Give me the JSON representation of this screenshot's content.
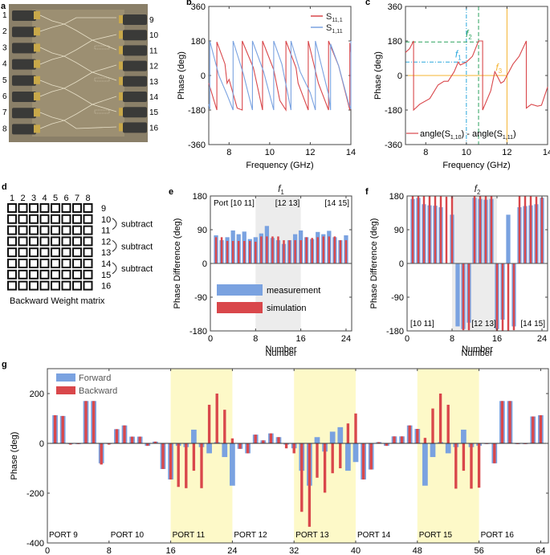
{
  "panels": {
    "a": {
      "letter": "a",
      "left_ports": [
        "1",
        "2",
        "3",
        "4",
        "5",
        "6",
        "7",
        "8"
      ],
      "right_ports": [
        "9",
        "10",
        "11",
        "12",
        "13",
        "14",
        "15",
        "16"
      ]
    },
    "d": {
      "letter": "d",
      "col_labels": [
        "1",
        "2",
        "3",
        "4",
        "5",
        "6",
        "7",
        "8"
      ],
      "row_labels": [
        "9",
        "10",
        "11",
        "12",
        "13",
        "14",
        "15",
        "16"
      ],
      "subtract_label": "subtract",
      "caption": "Backward Weight matrix"
    }
  },
  "chart_data": [
    {
      "id": "b",
      "letter": "b",
      "type": "line",
      "title": "",
      "xlabel": "Frequency (GHz)",
      "ylabel": "Phase (deg)",
      "xlim": [
        7,
        14
      ],
      "ylim": [
        -360,
        360
      ],
      "xticks": [
        "8",
        "10",
        "12",
        "14"
      ],
      "xtick_values": [
        8,
        10,
        12,
        14
      ],
      "yticks": [
        "-360",
        "-180",
        "0",
        "180",
        "360"
      ],
      "ytick_values": [
        -360,
        -180,
        0,
        180,
        360
      ],
      "legend_position": "top-right",
      "series": [
        {
          "name": "S11,1",
          "label_main": "S",
          "label_sub": "11,1",
          "color": "#d9474b",
          "x": [
            7.0,
            7.4,
            7.4,
            7.8,
            7.9,
            8.0,
            8.4,
            8.65,
            8.65,
            9.2,
            9.65,
            9.65,
            10.2,
            10.5,
            10.8,
            10.8,
            11.3,
            11.4,
            11.9,
            11.9,
            12.4,
            12.9,
            12.9,
            13.4,
            13.95,
            13.95,
            14.0
          ],
          "y": [
            -40,
            -180,
            175,
            60,
            -40,
            -20,
            -170,
            -180,
            180,
            40,
            -180,
            180,
            30,
            -130,
            -180,
            180,
            40,
            -40,
            -180,
            180,
            -40,
            -180,
            180,
            50,
            -180,
            170,
            120
          ]
        },
        {
          "name": "S1,11",
          "label_main": "S",
          "label_sub": "1,11",
          "color": "#7aa2e0",
          "x": [
            7.0,
            7.05,
            7.05,
            7.5,
            7.9,
            8.2,
            8.2,
            8.7,
            9.15,
            9.15,
            9.7,
            10.2,
            10.2,
            10.6,
            11.05,
            11.05,
            11.5,
            12.0,
            12.25,
            12.25,
            12.9,
            13.0,
            13.0,
            13.4,
            13.9,
            14.0,
            14.0
          ],
          "y": [
            -150,
            -175,
            180,
            0,
            -100,
            -180,
            180,
            10,
            -180,
            180,
            20,
            -180,
            180,
            60,
            -180,
            180,
            20,
            -90,
            -180,
            180,
            -100,
            -180,
            165,
            50,
            -150,
            -175,
            180
          ]
        }
      ]
    },
    {
      "id": "c",
      "letter": "c",
      "type": "line",
      "title": "",
      "xlabel": "Frequency (GHz)",
      "ylabel": "Phase (deg)",
      "xlim": [
        7,
        14
      ],
      "ylim": [
        -360,
        360
      ],
      "xticks": [
        "8",
        "10",
        "12",
        "14"
      ],
      "xtick_values": [
        8,
        10,
        12,
        14
      ],
      "yticks": [
        "-360",
        "-180",
        "0",
        "180",
        "360"
      ],
      "ytick_values": [
        -360,
        -180,
        0,
        180,
        360
      ],
      "legend_position": "bottom-right",
      "series": [
        {
          "name": "angle(S1,10) - angle(S1,11)",
          "color": "#d9474b",
          "x": [
            7.0,
            7.2,
            7.4,
            7.4,
            7.7,
            8.2,
            8.6,
            8.9,
            9.1,
            9.4,
            9.6,
            9.7,
            10.0,
            10.3,
            10.6,
            10.8,
            10.8,
            11.2,
            11.4,
            11.55,
            11.7,
            11.85,
            12.0,
            12.3,
            12.6,
            12.95,
            12.95,
            13.2,
            13.5,
            13.7,
            14.0
          ],
          "y": [
            120,
            140,
            180,
            -180,
            -150,
            -120,
            -50,
            -30,
            -30,
            20,
            70,
            55,
            70,
            100,
            180,
            180,
            -180,
            -80,
            20,
            -10,
            -40,
            -30,
            0,
            60,
            100,
            180,
            -170,
            -150,
            -160,
            -155,
            -60
          ]
        }
      ],
      "annotations": [
        {
          "label": "f",
          "sub": "1",
          "x": 10.0,
          "y": 70,
          "color": "#2aa7dd",
          "style": "dash-dot"
        },
        {
          "label": "f",
          "sub": "2",
          "x": 10.6,
          "y": 175,
          "color": "#2ca25f",
          "style": "dashed"
        },
        {
          "label": "f",
          "sub": "3",
          "x": 12.0,
          "y": 0,
          "color": "#f5b432",
          "style": "solid"
        }
      ],
      "legend_entry": {
        "main": "angle(S",
        "sub1": "1,10",
        "mid": ") - angle(S",
        "sub2": "1,11",
        "end": ")"
      }
    },
    {
      "id": "e",
      "letter": "e",
      "type": "bar",
      "title": "f",
      "title_sub": "1",
      "xlabel": "Number",
      "ylabel": "Phase Difference (deg)",
      "xlim": [
        0,
        25
      ],
      "ylim": [
        -180,
        180
      ],
      "xticks": [
        "0",
        "8",
        "16",
        "24"
      ],
      "xtick_values": [
        0,
        8,
        16,
        24
      ],
      "yticks": [
        "-180",
        "-90",
        "0",
        "90",
        "180"
      ],
      "ytick_values": [
        -180,
        -90,
        0,
        90,
        180
      ],
      "shaded_range": [
        8,
        16
      ],
      "port_labels": [
        {
          "text": "Port [10 11]",
          "pos": "left"
        },
        {
          "text": "[12 13]",
          "pos": "mid"
        },
        {
          "text": "[14 15]",
          "pos": "right"
        }
      ],
      "legend_position": "bottom-left",
      "series": [
        {
          "name": "measurement",
          "color": "#7aa2e0",
          "values": [
            75,
            62,
            70,
            88,
            78,
            85,
            65,
            70,
            80,
            100,
            68,
            62,
            52,
            62,
            78,
            88,
            70,
            65,
            84,
            78,
            87,
            70,
            62,
            75
          ]
        },
        {
          "name": "simulation",
          "color": "#d9474b",
          "values": [
            70,
            70,
            60,
            60,
            60,
            60,
            60,
            58,
            72,
            72,
            72,
            72,
            62,
            62,
            62,
            62,
            70,
            68,
            70,
            72,
            72,
            72,
            62,
            62
          ]
        }
      ]
    },
    {
      "id": "f",
      "letter": "f",
      "type": "bar",
      "title": "f",
      "title_sub": "2",
      "xlabel": "Number",
      "ylabel": "Phase Difference (deg)",
      "xlim": [
        0,
        25
      ],
      "ylim": [
        -180,
        180
      ],
      "xticks": [
        "0",
        "8",
        "16",
        "24"
      ],
      "xtick_values": [
        0,
        8,
        16,
        24
      ],
      "yticks": [
        "-180",
        "-90",
        "0",
        "90",
        "180"
      ],
      "ytick_values": [
        -180,
        -90,
        0,
        90,
        180
      ],
      "shaded_range": [
        8,
        16
      ],
      "port_labels": [
        {
          "text": "[10 11]",
          "pos": "left"
        },
        {
          "text": "[12 13]",
          "pos": "mid"
        },
        {
          "text": "[14 15]",
          "pos": "right"
        }
      ],
      "series": [
        {
          "name": "measurement",
          "color": "#7aa2e0",
          "values": [
            172,
            175,
            158,
            155,
            154,
            150,
            0,
            130,
            -168,
            -175,
            -158,
            175,
            172,
            170,
            172,
            -175,
            -150,
            130,
            -168,
            150,
            153,
            155,
            158,
            175
          ]
        },
        {
          "name": "simulation",
          "color": "#d9474b",
          "values": [
            180,
            180,
            180,
            180,
            180,
            180,
            178,
            180,
            0,
            -178,
            -178,
            180,
            180,
            180,
            180,
            -180,
            -180,
            -180,
            -178,
            180,
            180,
            180,
            178,
            176
          ]
        }
      ]
    },
    {
      "id": "g",
      "letter": "g",
      "type": "bar",
      "title": "",
      "xlabel": "Number",
      "ylabel": "Phase (deg)",
      "xlim": [
        0,
        65
      ],
      "ylim": [
        -400,
        300
      ],
      "xticks": [
        "0",
        "8",
        "16",
        "24",
        "32",
        "40",
        "48",
        "56",
        "64"
      ],
      "xtick_values": [
        0,
        8,
        16,
        24,
        32,
        40,
        48,
        56,
        64
      ],
      "yticks": [
        "-400",
        "-200",
        "0",
        "200"
      ],
      "ytick_values": [
        -400,
        -200,
        0,
        200
      ],
      "shaded_ranges": [
        [
          16,
          24
        ],
        [
          32,
          40
        ],
        [
          48,
          56
        ]
      ],
      "port_labels": [
        "PORT 9",
        "PORT 10",
        "PORT 11",
        "PORT 12",
        "PORT 13",
        "PORT 14",
        "PORT 15",
        "PORT 16"
      ],
      "legend_position": "top-left",
      "series": [
        {
          "name": "Forward",
          "color": "#7aa2e0",
          "values": [
            113,
            110,
            -3,
            -3,
            170,
            170,
            -80,
            0,
            57,
            72,
            27,
            27,
            -10,
            7,
            -103,
            -145,
            -10,
            -15,
            55,
            -15,
            -40,
            5,
            -55,
            -170,
            -22,
            -40,
            35,
            12,
            40,
            25,
            -5,
            -20,
            -110,
            -170,
            25,
            -33,
            47,
            65,
            -110,
            -75,
            -145,
            -105,
            5,
            -10,
            28,
            28,
            72,
            58,
            -170,
            -55,
            5,
            -40,
            -15,
            55,
            -15,
            -10,
            0,
            -80,
            170,
            170,
            -3,
            -3,
            108,
            113
          ]
        },
        {
          "name": "Backward",
          "color": "#d9474b",
          "values": [
            113,
            110,
            -5,
            -3,
            170,
            170,
            -85,
            -5,
            57,
            72,
            27,
            27,
            -10,
            7,
            -103,
            -145,
            -175,
            -180,
            -110,
            -180,
            155,
            200,
            135,
            20,
            -22,
            -40,
            35,
            12,
            40,
            25,
            -20,
            -40,
            -275,
            -335,
            -138,
            -198,
            -120,
            -100,
            80,
            120,
            -145,
            -105,
            5,
            -10,
            28,
            28,
            72,
            58,
            22,
            140,
            200,
            155,
            -182,
            -110,
            -182,
            -178,
            0,
            -80,
            170,
            170,
            -3,
            -3,
            108,
            113
          ]
        }
      ]
    }
  ]
}
